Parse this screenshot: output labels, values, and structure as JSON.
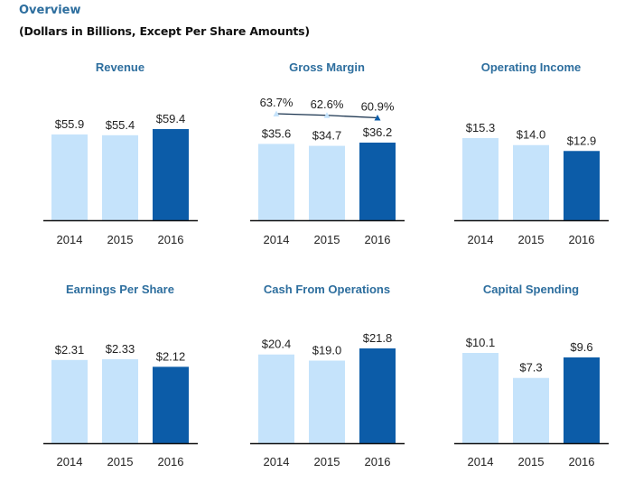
{
  "header": {
    "title": "Overview",
    "subtitle": "(Dollars in Billions, Except Per Share Amounts)"
  },
  "colors": {
    "prior_years": "#c5e3fb",
    "current_year": "#0c5ca8",
    "title": "#2d6e9e",
    "margin_line": "#1b3550"
  },
  "chart_data": [
    {
      "type": "bar",
      "title": "Revenue",
      "categories": [
        "2014",
        "2015",
        "2016"
      ],
      "values": [
        55.9,
        55.4,
        59.4
      ],
      "labels": [
        "$55.9",
        "$55.4",
        "$59.4"
      ]
    },
    {
      "type": "bar",
      "title": "Gross Margin",
      "categories": [
        "2014",
        "2015",
        "2016"
      ],
      "values": [
        35.6,
        34.7,
        36.2
      ],
      "labels": [
        "$35.6",
        "$34.7",
        "$36.2"
      ],
      "line_series": {
        "values": [
          63.7,
          62.6,
          60.9
        ],
        "labels": [
          "63.7%",
          "62.6%",
          "60.9%"
        ]
      }
    },
    {
      "type": "bar",
      "title": "Operating Income",
      "categories": [
        "2014",
        "2015",
        "2016"
      ],
      "values": [
        15.3,
        14.0,
        12.9
      ],
      "labels": [
        "$15.3",
        "$14.0",
        "$12.9"
      ]
    },
    {
      "type": "bar",
      "title": "Earnings Per Share",
      "categories": [
        "2014",
        "2015",
        "2016"
      ],
      "values": [
        2.31,
        2.33,
        2.12
      ],
      "labels": [
        "$2.31",
        "$2.33",
        "$2.12"
      ]
    },
    {
      "type": "bar",
      "title": "Cash From Operations",
      "categories": [
        "2014",
        "2015",
        "2016"
      ],
      "values": [
        20.4,
        19.0,
        21.8
      ],
      "labels": [
        "$20.4",
        "$19.0",
        "$21.8"
      ]
    },
    {
      "type": "bar",
      "title": "Capital Spending",
      "categories": [
        "2014",
        "2015",
        "2016"
      ],
      "values": [
        10.1,
        7.3,
        9.6
      ],
      "labels": [
        "$10.1",
        "$7.3",
        "$9.6"
      ]
    }
  ]
}
